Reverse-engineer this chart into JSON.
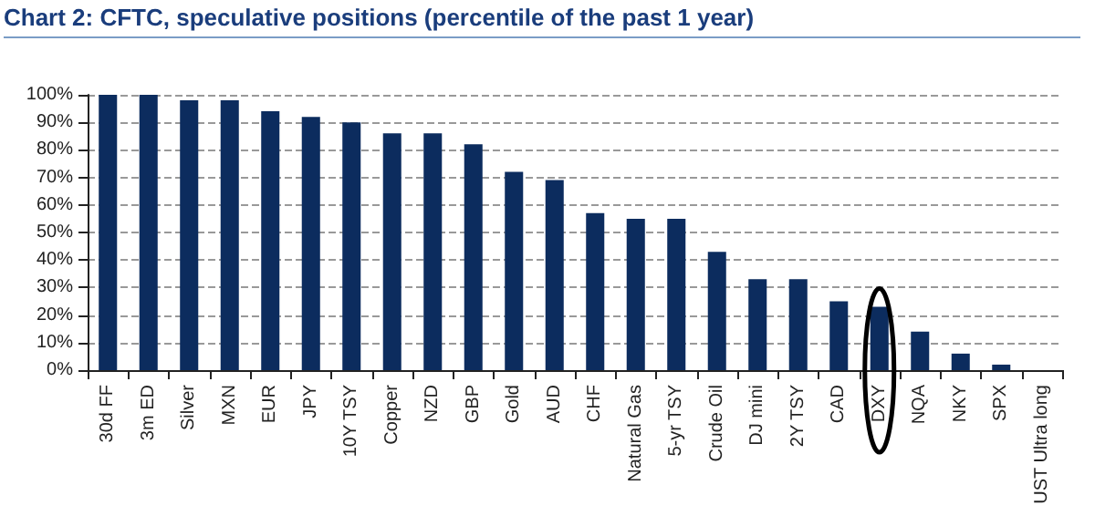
{
  "chart_data": {
    "type": "bar",
    "title": "Chart 2: CFTC, speculative positions (percentile of the past 1 year)",
    "categories": [
      "30d FF",
      "3m ED",
      "Silver",
      "MXN",
      "EUR",
      "JPY",
      "10Y TSY",
      "Copper",
      "NZD",
      "GBP",
      "Gold",
      "AUD",
      "CHF",
      "Natural Gas",
      "5-yr TSY",
      "Crude Oil",
      "DJ mini",
      "2Y TSY",
      "CAD",
      "DXY",
      "NQA",
      "NKY",
      "SPX",
      "UST Ultra long"
    ],
    "values": [
      100,
      100,
      98,
      98,
      94,
      92,
      90,
      86,
      86,
      82,
      72,
      69,
      57,
      55,
      55,
      43,
      33,
      33,
      25,
      23,
      14,
      6,
      2,
      0
    ],
    "color": "#0c2c5e",
    "ylim": [
      0,
      100
    ],
    "yticks": [
      {
        "value": 0,
        "label": "0%"
      },
      {
        "value": 10,
        "label": "10%"
      },
      {
        "value": 20,
        "label": "20%"
      },
      {
        "value": 30,
        "label": "30%"
      },
      {
        "value": 40,
        "label": "40%"
      },
      {
        "value": 50,
        "label": "50%"
      },
      {
        "value": 60,
        "label": "60%"
      },
      {
        "value": 70,
        "label": "70%"
      },
      {
        "value": 80,
        "label": "80%"
      },
      {
        "value": 90,
        "label": "90%"
      },
      {
        "value": 100,
        "label": "100%"
      }
    ],
    "grid": "y"
  }
}
